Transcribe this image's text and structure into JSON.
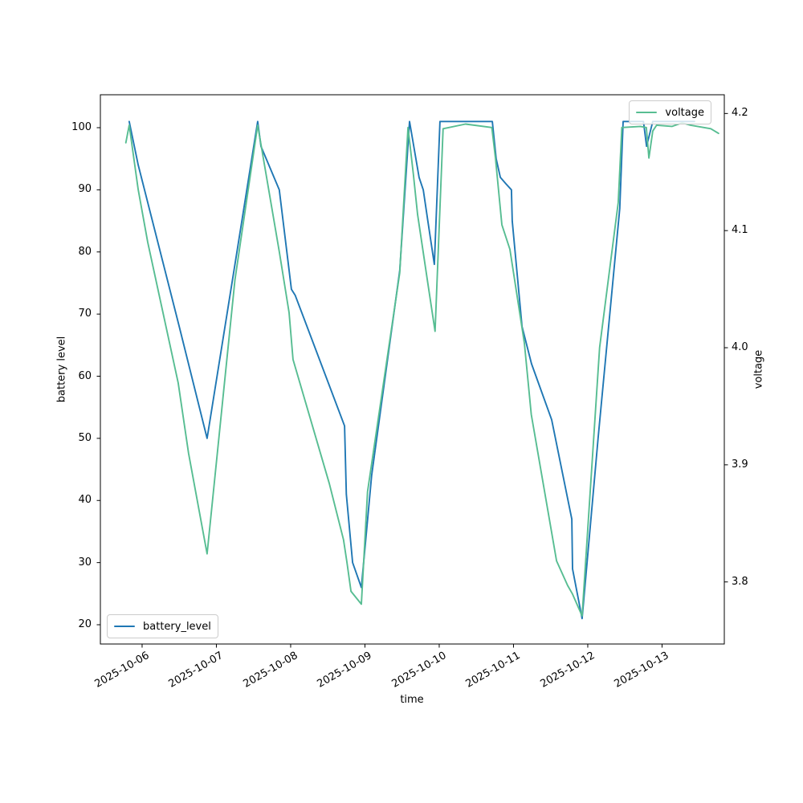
{
  "figure": {
    "background": "#ffffff",
    "frame_color": "#000000"
  },
  "chart_data": {
    "type": "line",
    "title": "",
    "xlabel": "time",
    "ylabel_left": "battery level",
    "ylabel_right": "voltage",
    "grid": false,
    "x_tick_labels": [
      "2025-10-06",
      "2025-10-07",
      "2025-10-08",
      "2025-10-09",
      "2025-10-10",
      "2025-10-11",
      "2025-10-12",
      "2025-10-13"
    ],
    "y_tick_labels_left": [
      "20",
      "30",
      "40",
      "50",
      "60",
      "70",
      "80",
      "90",
      "100"
    ],
    "y_tick_labels_right": [
      "3.8",
      "3.9",
      "4.0",
      "4.1",
      "4.2"
    ],
    "xlim": [
      "2025-10-05 10:31",
      "2025-10-13 20:07"
    ],
    "ylim_left": [
      16.9,
      105.3
    ],
    "ylim_right": [
      3.747,
      4.216
    ],
    "legends": {
      "battery": {
        "label": "battery_level",
        "position": "lower left"
      },
      "voltage": {
        "label": "voltage",
        "position": "upper right"
      }
    },
    "series": [
      {
        "name": "battery_level",
        "axis": "left",
        "color": "#1f77b4",
        "points": [
          [
            "2025-10-05 19:50",
            101
          ],
          [
            "2025-10-05 22:45",
            94
          ],
          [
            "2025-10-06 12:00",
            68
          ],
          [
            "2025-10-06 21:00",
            50
          ],
          [
            "2025-10-07 06:00",
            78
          ],
          [
            "2025-10-07 13:20",
            101
          ],
          [
            "2025-10-07 14:25",
            97
          ],
          [
            "2025-10-07 20:20",
            90
          ],
          [
            "2025-10-08 00:15",
            74
          ],
          [
            "2025-10-08 01:30",
            73
          ],
          [
            "2025-10-08 17:25",
            52
          ],
          [
            "2025-10-08 18:00",
            41
          ],
          [
            "2025-10-08 20:00",
            30
          ],
          [
            "2025-10-08 22:50",
            26
          ],
          [
            "2025-10-09 02:10",
            44
          ],
          [
            "2025-10-09 11:15",
            77
          ],
          [
            "2025-10-09 14:25",
            101
          ],
          [
            "2025-10-09 17:30",
            92
          ],
          [
            "2025-10-09 18:50",
            90
          ],
          [
            "2025-10-09 20:20",
            85
          ],
          [
            "2025-10-09 22:25",
            78
          ],
          [
            "2025-10-10 00:15",
            101
          ],
          [
            "2025-10-10 17:10",
            101
          ],
          [
            "2025-10-10 18:25",
            95
          ],
          [
            "2025-10-10 19:45",
            92
          ],
          [
            "2025-10-10 21:30",
            91
          ],
          [
            "2025-10-10 23:20",
            90
          ],
          [
            "2025-10-10 23:35",
            85
          ],
          [
            "2025-10-11 02:45",
            68
          ],
          [
            "2025-10-11 05:50",
            62
          ],
          [
            "2025-10-11 12:20",
            53
          ],
          [
            "2025-10-11 18:50",
            37
          ],
          [
            "2025-10-11 19:05",
            29
          ],
          [
            "2025-10-11 22:10",
            21
          ],
          [
            "2025-10-12 03:20",
            50
          ],
          [
            "2025-10-12 10:20",
            87
          ],
          [
            "2025-10-12 11:25",
            101
          ],
          [
            "2025-10-12 18:00",
            101
          ],
          [
            "2025-10-12 19:00",
            97
          ],
          [
            "2025-10-12 21:00",
            101
          ],
          [
            "2025-10-13 10:30",
            101
          ]
        ]
      },
      {
        "name": "voltage",
        "axis": "right",
        "color": "#57bd92",
        "points": [
          [
            "2025-10-05 18:45",
            4.175
          ],
          [
            "2025-10-05 19:50",
            4.19
          ],
          [
            "2025-10-05 22:45",
            4.135
          ],
          [
            "2025-10-06 01:50",
            4.09
          ],
          [
            "2025-10-06 11:40",
            3.97
          ],
          [
            "2025-10-06 15:00",
            3.91
          ],
          [
            "2025-10-06 21:00",
            3.824
          ],
          [
            "2025-10-07 06:00",
            4.058
          ],
          [
            "2025-10-07 13:20",
            4.19
          ],
          [
            "2025-10-07 20:20",
            4.082
          ],
          [
            "2025-10-07 23:30",
            4.03
          ],
          [
            "2025-10-08 00:45",
            3.99
          ],
          [
            "2025-10-08 12:30",
            3.884
          ],
          [
            "2025-10-08 17:05",
            3.836
          ],
          [
            "2025-10-08 18:10",
            3.817
          ],
          [
            "2025-10-08 19:30",
            3.792
          ],
          [
            "2025-10-08 22:50",
            3.781
          ],
          [
            "2025-10-09 00:50",
            3.877
          ],
          [
            "2025-10-09 11:15",
            4.064
          ],
          [
            "2025-10-09 13:55",
            4.188
          ],
          [
            "2025-10-09 15:40",
            4.148
          ],
          [
            "2025-10-09 17:00",
            4.114
          ],
          [
            "2025-10-09 20:20",
            4.055
          ],
          [
            "2025-10-09 22:40",
            4.014
          ],
          [
            "2025-10-10 01:15",
            4.187
          ],
          [
            "2025-10-10 08:30",
            4.191
          ],
          [
            "2025-10-10 17:00",
            4.188
          ],
          [
            "2025-10-10 18:10",
            4.162
          ],
          [
            "2025-10-10 20:15",
            4.105
          ],
          [
            "2025-10-10 22:50",
            4.084
          ],
          [
            "2025-10-11 03:30",
            4.004
          ],
          [
            "2025-10-11 05:45",
            3.943
          ],
          [
            "2025-10-11 13:55",
            3.818
          ],
          [
            "2025-10-11 17:30",
            3.797
          ],
          [
            "2025-10-11 19:00",
            3.79
          ],
          [
            "2025-10-11 22:10",
            3.771
          ],
          [
            "2025-10-12 03:50",
            4.0
          ],
          [
            "2025-10-12 09:50",
            4.124
          ],
          [
            "2025-10-12 11:00",
            4.188
          ],
          [
            "2025-10-12 17:00",
            4.189
          ],
          [
            "2025-10-12 18:55",
            4.188
          ],
          [
            "2025-10-12 19:45",
            4.162
          ],
          [
            "2025-10-12 21:00",
            4.185
          ],
          [
            "2025-10-12 22:15",
            4.19
          ],
          [
            "2025-10-13 03:15",
            4.189
          ],
          [
            "2025-10-13 06:30",
            4.192
          ],
          [
            "2025-10-13 09:15",
            4.19
          ],
          [
            "2025-10-13 15:45",
            4.187
          ],
          [
            "2025-10-13 18:15",
            4.183
          ]
        ]
      }
    ]
  }
}
